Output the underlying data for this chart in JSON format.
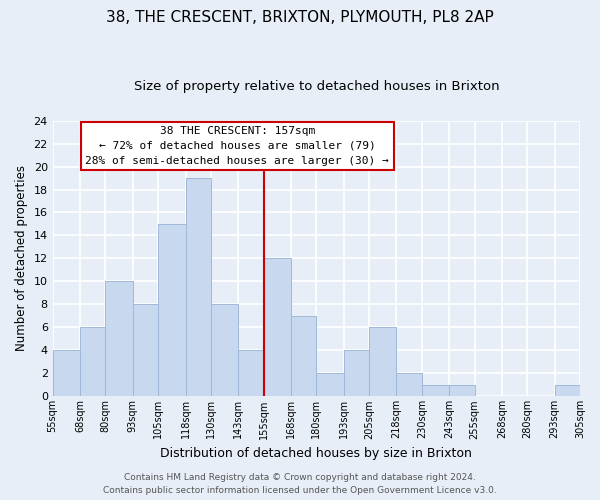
{
  "title": "38, THE CRESCENT, BRIXTON, PLYMOUTH, PL8 2AP",
  "subtitle": "Size of property relative to detached houses in Brixton",
  "xlabel": "Distribution of detached houses by size in Brixton",
  "ylabel": "Number of detached properties",
  "bin_edges": [
    55,
    68,
    80,
    93,
    105,
    118,
    130,
    143,
    155,
    168,
    180,
    193,
    205,
    218,
    230,
    243,
    255,
    268,
    280,
    293,
    305
  ],
  "bar_heights": [
    4,
    6,
    10,
    8,
    15,
    19,
    8,
    4,
    12,
    7,
    2,
    4,
    6,
    2,
    1,
    1,
    0,
    0,
    0,
    1
  ],
  "tick_labels": [
    "55sqm",
    "68sqm",
    "80sqm",
    "93sqm",
    "105sqm",
    "118sqm",
    "130sqm",
    "143sqm",
    "155sqm",
    "168sqm",
    "180sqm",
    "193sqm",
    "205sqm",
    "218sqm",
    "230sqm",
    "243sqm",
    "255sqm",
    "268sqm",
    "280sqm",
    "293sqm",
    "305sqm"
  ],
  "bar_color": "#c8d8ee",
  "bar_edge_color": "#a0b8d8",
  "vline_x": 155,
  "vline_color": "#cc0000",
  "ylim": [
    0,
    24
  ],
  "yticks": [
    0,
    2,
    4,
    6,
    8,
    10,
    12,
    14,
    16,
    18,
    20,
    22,
    24
  ],
  "annotation_title": "38 THE CRESCENT: 157sqm",
  "annotation_line1": "← 72% of detached houses are smaller (79)",
  "annotation_line2": "28% of semi-detached houses are larger (30) →",
  "annotation_box_color": "#ffffff",
  "annotation_box_edge": "#cc0000",
  "footer1": "Contains HM Land Registry data © Crown copyright and database right 2024.",
  "footer2": "Contains public sector information licensed under the Open Government Licence v3.0.",
  "background_color": "#e8eef8",
  "grid_color": "#ffffff",
  "title_fontsize": 11,
  "subtitle_fontsize": 9.5,
  "xlabel_fontsize": 9,
  "ylabel_fontsize": 8.5,
  "tick_fontsize": 7,
  "footer_fontsize": 6.5,
  "ann_fontsize": 8
}
